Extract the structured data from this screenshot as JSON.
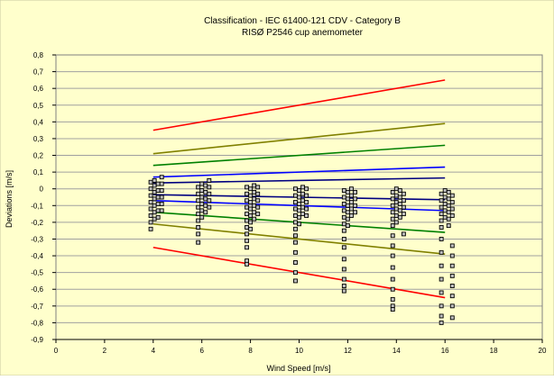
{
  "chart_data": {
    "type": "scatter",
    "title": "Classification - IEC 61400-121 CDV - Category B",
    "subtitle": "RISØ P2546 cup anemometer",
    "xlabel": "Wind Speed [m/s]",
    "ylabel": "Deviations [m/s]",
    "xlim": [
      0,
      20
    ],
    "ylim": [
      -0.9,
      0.8
    ],
    "x_ticks": [
      0,
      2,
      4,
      6,
      8,
      10,
      12,
      14,
      16,
      18,
      20
    ],
    "x_tick_labels": [
      "0",
      "2",
      "4",
      "6",
      "8",
      "10",
      "12",
      "14",
      "16",
      "18",
      "20"
    ],
    "y_ticks": [
      0.8,
      0.7,
      0.6,
      0.5,
      0.4,
      0.3,
      0.2,
      0.1,
      0,
      -0.1,
      -0.2,
      -0.3,
      -0.4,
      -0.5,
      -0.6,
      -0.7,
      -0.8,
      -0.9
    ],
    "y_tick_labels": [
      "0,8",
      "0,7",
      "0,6",
      "0,5",
      "0,4",
      "0,3",
      "0,2",
      "0,1",
      "0",
      "-0,1",
      "-0,2",
      "-0,3",
      "-0,4",
      "-0,5",
      "-0,6",
      "-0,7",
      "-0,8",
      "-0,9"
    ],
    "grid": "horizontal",
    "legend": "none",
    "colors": {
      "background": "#FFFFCC",
      "red": "#FF0000",
      "olive": "#808000",
      "green": "#008000",
      "blue": "#0000FF",
      "navy": "#000080",
      "marker_fill": "#C0C0C0",
      "marker_edge": "#000000"
    },
    "lines": [
      {
        "color": "red",
        "x": [
          4,
          16
        ],
        "y": [
          0.35,
          0.65
        ]
      },
      {
        "color": "red",
        "x": [
          4,
          16
        ],
        "y": [
          -0.35,
          -0.65
        ]
      },
      {
        "color": "olive",
        "x": [
          4,
          16
        ],
        "y": [
          0.21,
          0.39
        ]
      },
      {
        "color": "olive",
        "x": [
          4,
          16
        ],
        "y": [
          -0.21,
          -0.39
        ]
      },
      {
        "color": "green",
        "x": [
          4,
          16
        ],
        "y": [
          0.14,
          0.26
        ]
      },
      {
        "color": "green",
        "x": [
          4,
          16
        ],
        "y": [
          -0.14,
          -0.26
        ]
      },
      {
        "color": "blue",
        "x": [
          4,
          16
        ],
        "y": [
          0.07,
          0.13
        ]
      },
      {
        "color": "blue",
        "x": [
          4,
          16
        ],
        "y": [
          -0.07,
          -0.13
        ]
      },
      {
        "color": "navy",
        "x": [
          4,
          16
        ],
        "y": [
          0.035,
          0.065
        ]
      },
      {
        "color": "navy",
        "x": [
          4,
          16
        ],
        "y": [
          -0.035,
          -0.065
        ]
      }
    ],
    "points": [
      [
        3.9,
        0.04
      ],
      [
        3.9,
        0.0
      ],
      [
        3.9,
        -0.04
      ],
      [
        3.9,
        -0.08
      ],
      [
        3.9,
        -0.12
      ],
      [
        3.9,
        -0.16
      ],
      [
        3.9,
        -0.2
      ],
      [
        3.9,
        -0.24
      ],
      [
        4.05,
        0.05
      ],
      [
        4.05,
        0.02
      ],
      [
        4.05,
        -0.02
      ],
      [
        4.05,
        -0.06
      ],
      [
        4.05,
        -0.1
      ],
      [
        4.05,
        -0.14
      ],
      [
        4.05,
        -0.18
      ],
      [
        4.2,
        0.03
      ],
      [
        4.2,
        -0.01
      ],
      [
        4.2,
        -0.05
      ],
      [
        4.2,
        -0.09
      ],
      [
        4.2,
        -0.13
      ],
      [
        4.2,
        -0.17
      ],
      [
        4.35,
        0.07
      ],
      [
        4.35,
        0.03
      ],
      [
        4.35,
        -0.01
      ],
      [
        4.35,
        -0.05
      ],
      [
        4.35,
        -0.09
      ],
      [
        4.35,
        -0.13
      ],
      [
        5.85,
        0.01
      ],
      [
        5.85,
        -0.03
      ],
      [
        5.85,
        -0.07
      ],
      [
        5.85,
        -0.11
      ],
      [
        5.85,
        -0.15
      ],
      [
        5.85,
        -0.19
      ],
      [
        5.85,
        -0.23
      ],
      [
        5.85,
        -0.27
      ],
      [
        5.85,
        -0.32
      ],
      [
        6.0,
        0.03
      ],
      [
        6.0,
        -0.01
      ],
      [
        6.0,
        -0.05
      ],
      [
        6.0,
        -0.09
      ],
      [
        6.0,
        -0.13
      ],
      [
        6.0,
        -0.17
      ],
      [
        6.15,
        0.02
      ],
      [
        6.15,
        -0.02
      ],
      [
        6.15,
        -0.06
      ],
      [
        6.15,
        -0.1
      ],
      [
        6.15,
        -0.14
      ],
      [
        6.3,
        0.05
      ],
      [
        6.3,
        0.01
      ],
      [
        6.3,
        -0.03
      ],
      [
        6.3,
        -0.07
      ],
      [
        6.3,
        -0.11
      ],
      [
        7.85,
        0.01
      ],
      [
        7.85,
        -0.03
      ],
      [
        7.85,
        -0.07
      ],
      [
        7.85,
        -0.11
      ],
      [
        7.85,
        -0.15
      ],
      [
        7.85,
        -0.19
      ],
      [
        7.85,
        -0.23
      ],
      [
        7.85,
        -0.27
      ],
      [
        7.85,
        -0.31
      ],
      [
        7.85,
        -0.35
      ],
      [
        7.85,
        -0.43
      ],
      [
        7.85,
        -0.45
      ],
      [
        8.0,
        0.0
      ],
      [
        8.0,
        -0.04
      ],
      [
        8.0,
        -0.08
      ],
      [
        8.0,
        -0.12
      ],
      [
        8.0,
        -0.16
      ],
      [
        8.0,
        -0.2
      ],
      [
        8.0,
        -0.24
      ],
      [
        8.15,
        0.02
      ],
      [
        8.15,
        -0.02
      ],
      [
        8.15,
        -0.06
      ],
      [
        8.15,
        -0.1
      ],
      [
        8.15,
        -0.14
      ],
      [
        8.15,
        -0.18
      ],
      [
        8.3,
        0.01
      ],
      [
        8.3,
        -0.03
      ],
      [
        8.3,
        -0.07
      ],
      [
        8.3,
        -0.11
      ],
      [
        8.3,
        -0.15
      ],
      [
        9.85,
        0.0
      ],
      [
        9.85,
        -0.04
      ],
      [
        9.85,
        -0.08
      ],
      [
        9.85,
        -0.12
      ],
      [
        9.85,
        -0.16
      ],
      [
        9.85,
        -0.2
      ],
      [
        9.85,
        -0.24
      ],
      [
        9.85,
        -0.28
      ],
      [
        9.85,
        -0.32
      ],
      [
        9.85,
        -0.38
      ],
      [
        9.85,
        -0.44
      ],
      [
        9.85,
        -0.5
      ],
      [
        9.85,
        -0.55
      ],
      [
        10.0,
        -0.01
      ],
      [
        10.0,
        -0.05
      ],
      [
        10.0,
        -0.09
      ],
      [
        10.0,
        -0.13
      ],
      [
        10.0,
        -0.17
      ],
      [
        10.0,
        -0.21
      ],
      [
        10.15,
        0.01
      ],
      [
        10.15,
        -0.03
      ],
      [
        10.15,
        -0.07
      ],
      [
        10.15,
        -0.11
      ],
      [
        10.15,
        -0.15
      ],
      [
        10.3,
        0.0
      ],
      [
        10.3,
        -0.04
      ],
      [
        10.3,
        -0.08
      ],
      [
        10.3,
        -0.12
      ],
      [
        10.3,
        -0.16
      ],
      [
        11.85,
        -0.01
      ],
      [
        11.85,
        -0.05
      ],
      [
        11.85,
        -0.09
      ],
      [
        11.85,
        -0.13
      ],
      [
        11.85,
        -0.17
      ],
      [
        11.85,
        -0.21
      ],
      [
        11.85,
        -0.25
      ],
      [
        11.85,
        -0.3
      ],
      [
        11.85,
        -0.35
      ],
      [
        11.85,
        -0.42
      ],
      [
        11.85,
        -0.48
      ],
      [
        11.85,
        -0.54
      ],
      [
        11.85,
        -0.58
      ],
      [
        11.85,
        -0.61
      ],
      [
        12.0,
        -0.02
      ],
      [
        12.0,
        -0.06
      ],
      [
        12.0,
        -0.1
      ],
      [
        12.0,
        -0.14
      ],
      [
        12.0,
        -0.18
      ],
      [
        12.0,
        -0.22
      ],
      [
        12.15,
        0.0
      ],
      [
        12.15,
        -0.04
      ],
      [
        12.15,
        -0.08
      ],
      [
        12.15,
        -0.12
      ],
      [
        12.15,
        -0.16
      ],
      [
        12.3,
        -0.02
      ],
      [
        12.3,
        -0.06
      ],
      [
        12.3,
        -0.1
      ],
      [
        12.3,
        -0.14
      ],
      [
        13.85,
        -0.02
      ],
      [
        13.85,
        -0.06
      ],
      [
        13.85,
        -0.1
      ],
      [
        13.85,
        -0.14
      ],
      [
        13.85,
        -0.18
      ],
      [
        13.85,
        -0.22
      ],
      [
        13.85,
        -0.28
      ],
      [
        13.85,
        -0.34
      ],
      [
        13.85,
        -0.4
      ],
      [
        13.85,
        -0.47
      ],
      [
        13.85,
        -0.54
      ],
      [
        13.85,
        -0.6
      ],
      [
        13.85,
        -0.66
      ],
      [
        13.85,
        -0.7
      ],
      [
        13.85,
        -0.72
      ],
      [
        14.0,
        0.0
      ],
      [
        14.0,
        -0.04
      ],
      [
        14.0,
        -0.08
      ],
      [
        14.0,
        -0.12
      ],
      [
        14.0,
        -0.16
      ],
      [
        14.0,
        -0.2
      ],
      [
        14.15,
        -0.01
      ],
      [
        14.15,
        -0.05
      ],
      [
        14.15,
        -0.09
      ],
      [
        14.15,
        -0.13
      ],
      [
        14.15,
        -0.17
      ],
      [
        14.3,
        -0.03
      ],
      [
        14.3,
        -0.07
      ],
      [
        14.3,
        -0.11
      ],
      [
        14.3,
        -0.15
      ],
      [
        14.3,
        -0.27
      ],
      [
        15.85,
        -0.03
      ],
      [
        15.85,
        -0.07
      ],
      [
        15.85,
        -0.11
      ],
      [
        15.85,
        -0.15
      ],
      [
        15.85,
        -0.19
      ],
      [
        15.85,
        -0.23
      ],
      [
        15.85,
        -0.3
      ],
      [
        15.85,
        -0.38
      ],
      [
        15.85,
        -0.46
      ],
      [
        15.85,
        -0.54
      ],
      [
        15.85,
        -0.62
      ],
      [
        15.85,
        -0.7
      ],
      [
        15.85,
        -0.76
      ],
      [
        15.85,
        -0.8
      ],
      [
        16.0,
        -0.01
      ],
      [
        16.0,
        -0.05
      ],
      [
        16.0,
        -0.09
      ],
      [
        16.0,
        -0.13
      ],
      [
        16.0,
        -0.17
      ],
      [
        16.15,
        -0.02
      ],
      [
        16.15,
        -0.06
      ],
      [
        16.15,
        -0.1
      ],
      [
        16.15,
        -0.14
      ],
      [
        16.15,
        -0.18
      ],
      [
        16.15,
        -0.22
      ],
      [
        16.3,
        -0.04
      ],
      [
        16.3,
        -0.08
      ],
      [
        16.3,
        -0.12
      ],
      [
        16.3,
        -0.16
      ],
      [
        16.3,
        -0.34
      ],
      [
        16.3,
        -0.4
      ],
      [
        16.3,
        -0.46
      ],
      [
        16.3,
        -0.52
      ],
      [
        16.3,
        -0.58
      ],
      [
        16.3,
        -0.64
      ],
      [
        16.3,
        -0.7
      ],
      [
        16.3,
        -0.77
      ]
    ]
  }
}
